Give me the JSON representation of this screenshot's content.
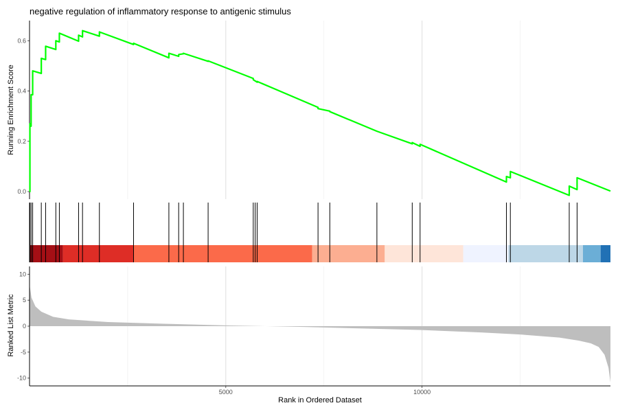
{
  "chart_data": {
    "type": "line",
    "title": "negative regulation of inflammatory response to antigenic stimulus",
    "xlabel": "Rank in Ordered Dataset",
    "xlim": [
      0,
      14800
    ],
    "x_ticks": [
      5000,
      10000
    ],
    "grid": true,
    "panels": {
      "running_score": {
        "ylabel": "Running Enrichment Score",
        "ylim": [
          -0.03,
          0.68
        ],
        "y_ticks": [
          "0.0",
          "0.2",
          "0.4",
          "0.6"
        ],
        "line_color": "#00FF00",
        "x": [
          0,
          10,
          10,
          40,
          40,
          80,
          80,
          300,
          300,
          410,
          410,
          670,
          670,
          760,
          760,
          1250,
          1250,
          1350,
          1350,
          1780,
          1780,
          2650,
          2650,
          3550,
          3550,
          3800,
          3800,
          3920,
          3920,
          4550,
          4550,
          5700,
          5700,
          5800,
          5800,
          7350,
          7350,
          7650,
          7650,
          8850,
          8850,
          9750,
          9750,
          9950,
          9950,
          12150,
          12150,
          12250,
          12250,
          13750,
          13750,
          13950,
          13950,
          14800
        ],
        "y": [
          0.0,
          0.0,
          0.27,
          0.26,
          0.385,
          0.385,
          0.48,
          0.47,
          0.53,
          0.525,
          0.578,
          0.565,
          0.6,
          0.595,
          0.63,
          0.598,
          0.622,
          0.615,
          0.64,
          0.618,
          0.635,
          0.585,
          0.59,
          0.532,
          0.55,
          0.538,
          0.545,
          0.548,
          0.55,
          0.518,
          0.52,
          0.45,
          0.445,
          0.435,
          0.438,
          0.335,
          0.33,
          0.32,
          0.318,
          0.24,
          0.24,
          0.19,
          0.195,
          0.18,
          0.188,
          0.038,
          0.06,
          0.055,
          0.08,
          -0.015,
          0.022,
          0.008,
          0.055,
          0.002
        ]
      },
      "hits": {
        "gene_ranks": [
          10,
          40,
          80,
          300,
          410,
          670,
          760,
          1250,
          1350,
          1780,
          2650,
          3550,
          3800,
          3920,
          4550,
          5700,
          5750,
          5800,
          7350,
          7650,
          8850,
          9750,
          9950,
          12150,
          12250,
          13750,
          13950
        ]
      },
      "heat_bar": {
        "segments": [
          {
            "start": 0,
            "end": 850,
            "color": "#A50F15"
          },
          {
            "start": 850,
            "end": 2650,
            "color": "#DE2D26"
          },
          {
            "start": 2650,
            "end": 7200,
            "color": "#FB6A4A"
          },
          {
            "start": 7200,
            "end": 9050,
            "color": "#FCAE91"
          },
          {
            "start": 9050,
            "end": 11050,
            "color": "#FEE5D9"
          },
          {
            "start": 11050,
            "end": 12200,
            "color": "#EFF3FF"
          },
          {
            "start": 12200,
            "end": 14100,
            "color": "#BDD7E7"
          },
          {
            "start": 14100,
            "end": 14550,
            "color": "#6BAED6"
          },
          {
            "start": 14550,
            "end": 14800,
            "color": "#2171B5"
          }
        ]
      },
      "ranked_metric": {
        "ylabel": "Ranked List Metric",
        "ylim": [
          -11.5,
          11.5
        ],
        "y_ticks": [
          "10",
          "5",
          "0",
          "-5",
          "-10"
        ],
        "fill_color": "#BEBEBE",
        "x": [
          0,
          50,
          150,
          300,
          600,
          1000,
          2000,
          3500,
          5000,
          7000,
          8500,
          10000,
          11500,
          12500,
          13500,
          14000,
          14300,
          14500,
          14650,
          14750,
          14800
        ],
        "y": [
          8.0,
          5.5,
          3.8,
          2.8,
          1.8,
          1.3,
          0.8,
          0.45,
          0.15,
          -0.15,
          -0.45,
          -0.75,
          -1.2,
          -1.6,
          -2.2,
          -2.8,
          -3.3,
          -4.0,
          -5.5,
          -8.0,
          -10.8
        ]
      }
    }
  }
}
